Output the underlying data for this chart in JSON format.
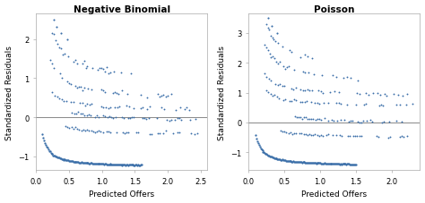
{
  "title_left": "Negative Binomial",
  "title_right": "Poisson",
  "xlabel": "Predicted Offers",
  "ylabel": "Standardized Residuals",
  "bg_color": "#ffffff",
  "panel_bg": "#ffffff",
  "dot_color": "#3a6ea8",
  "dot_size": 1.8,
  "nb_xlim": [
    0.0,
    2.6
  ],
  "nb_ylim": [
    -1.35,
    2.65
  ],
  "nb_yticks": [
    -1,
    0,
    1,
    2
  ],
  "nb_xticks": [
    0.0,
    0.5,
    1.0,
    1.5,
    2.0,
    2.5
  ],
  "pois_xlim": [
    0.0,
    2.4
  ],
  "pois_ylim": [
    -1.6,
    3.65
  ],
  "pois_yticks": [
    -1,
    0,
    1,
    2,
    3
  ],
  "pois_xticks": [
    0.0,
    0.5,
    1.0,
    1.5,
    2.0
  ]
}
